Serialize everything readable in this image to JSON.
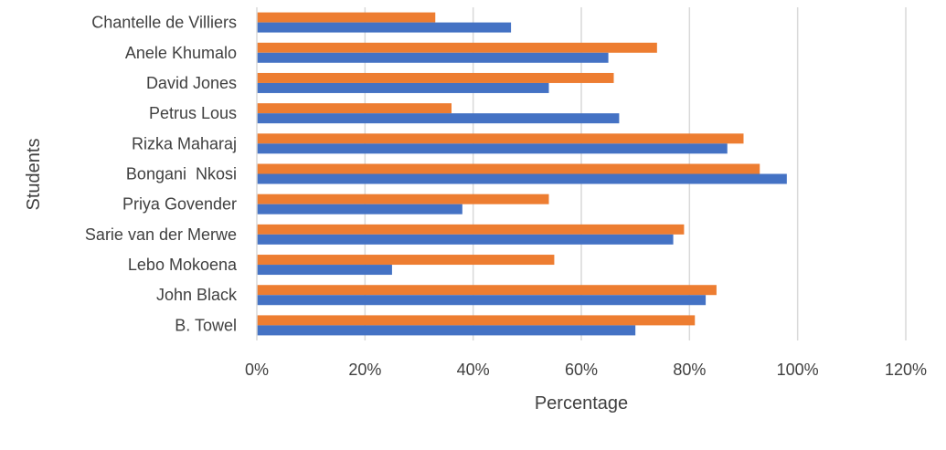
{
  "chart_data": {
    "type": "bar",
    "orientation": "horizontal",
    "categories": [
      "Chantelle de Villiers",
      "Anele Khumalo",
      "David Jones",
      "Petrus Lous",
      "Rizka Maharaj",
      "Bongani  Nkosi",
      "Priya Govender",
      "Sarie van der Merwe",
      "Lebo Mokoena",
      "John Black",
      "B. Towel"
    ],
    "series": [
      {
        "color": "#ED7D31",
        "values": [
          0.33,
          0.74,
          0.66,
          0.36,
          0.9,
          0.93,
          0.54,
          0.79,
          0.55,
          0.85,
          0.81
        ]
      },
      {
        "color": "#4472C4",
        "values": [
          0.47,
          0.65,
          0.54,
          0.67,
          0.87,
          0.98,
          0.38,
          0.77,
          0.25,
          0.83,
          0.7
        ]
      }
    ],
    "xticks": [
      "0%",
      "20%",
      "40%",
      "60%",
      "80%",
      "100%",
      "120%"
    ],
    "xlim": [
      0,
      1.2
    ],
    "xlabel": "Percentage",
    "ylabel": "Students",
    "grid": "vertical",
    "legend": "none"
  }
}
